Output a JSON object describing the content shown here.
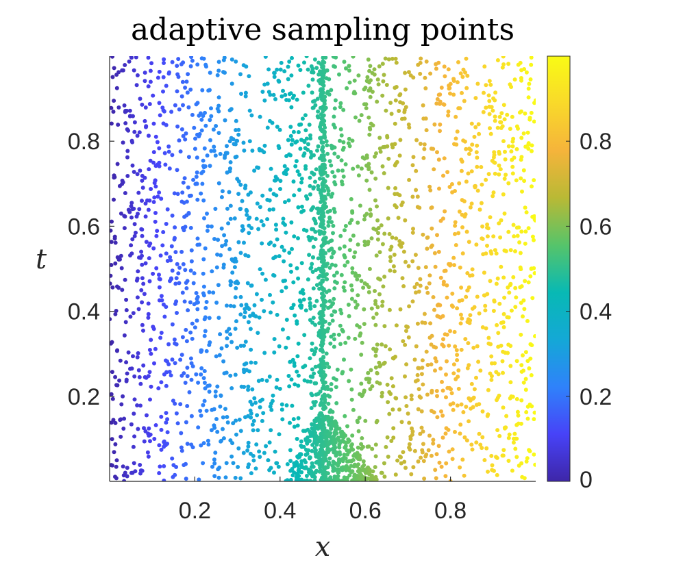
{
  "chart_data": {
    "type": "scatter",
    "title": "adaptive sampling points",
    "xlabel": "x",
    "ylabel": "t",
    "xlim": [
      0,
      1
    ],
    "ylim": [
      0,
      1
    ],
    "x_ticks": [
      "0.2",
      "0.4",
      "0.6",
      "0.8"
    ],
    "y_ticks": [
      "0.2",
      "0.4",
      "0.6",
      "0.8"
    ],
    "colorbar": {
      "range": [
        0,
        1
      ],
      "ticks": [
        "0",
        "0.2",
        "0.4",
        "0.6",
        "0.8"
      ],
      "colormap": "parula",
      "colors": [
        "#3e26a8",
        "#4743f8",
        "#2f82fa",
        "#14a8d6",
        "#08b9b4",
        "#56c46a",
        "#b9b935",
        "#f5b43b",
        "#f9d92a",
        "#f9fb15"
      ]
    },
    "series": [
      {
        "point_color": "value equals x",
        "counts": {
          "uniform": 2400,
          "shock_line": 320,
          "near_shock": 180,
          "initial_fan": 380
        },
        "regions": {
          "uniform": {
            "x": [
              0,
              1
            ],
            "t": [
              0,
              1
            ]
          },
          "shock_line": {
            "x": 0.5,
            "t": [
              0,
              1
            ]
          },
          "initial_fan": {
            "x": [
              0.38,
              0.6
            ],
            "t": [
              0,
              0.15
            ]
          }
        }
      }
    ],
    "grid": false
  }
}
